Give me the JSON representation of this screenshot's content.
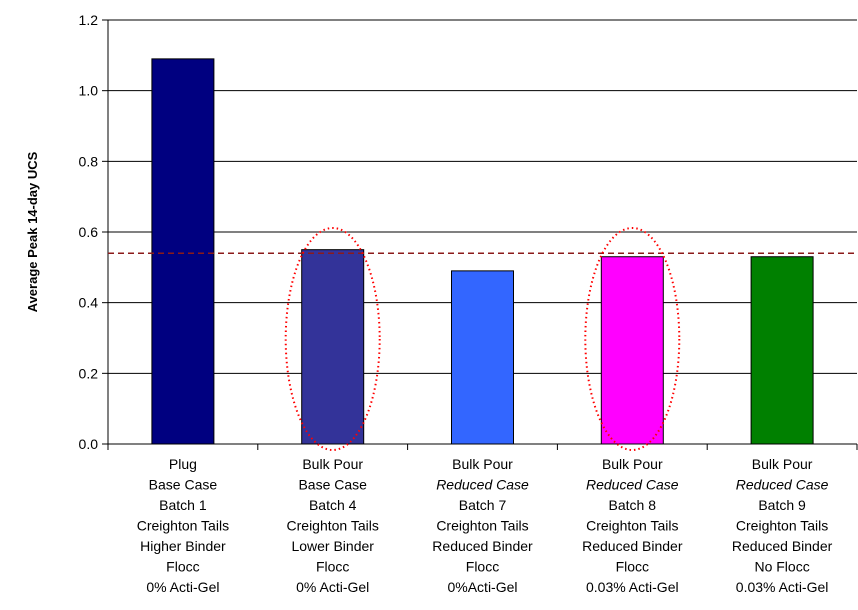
{
  "chart_data": {
    "type": "bar",
    "ylabel": "Average Peak 14-day UCS",
    "xlabel": "",
    "title": "",
    "ylim": [
      0,
      1.2
    ],
    "yticks": [
      "0.0",
      "0.2",
      "0.4",
      "0.6",
      "0.8",
      "1.0",
      "1.2"
    ],
    "grid": true,
    "categories": [
      [
        "Plug",
        "Base Case",
        "Batch 1",
        "Creighton Tails",
        "Higher Binder",
        "Flocc",
        "0% Acti-Gel"
      ],
      [
        "Bulk Pour",
        "Base Case",
        "Batch 4",
        "Creighton Tails",
        "Lower Binder",
        "Flocc",
        "0% Acti-Gel"
      ],
      [
        "Bulk Pour",
        "Reduced Case",
        "Batch 7",
        "Creighton Tails",
        "Reduced Binder",
        "Flocc",
        "0%Acti-Gel"
      ],
      [
        "Bulk Pour",
        "Reduced Case",
        "Batch 8",
        "Creighton Tails",
        "Reduced Binder",
        "Flocc",
        "0.03% Acti-Gel"
      ],
      [
        "Bulk Pour",
        "Reduced Case",
        "Batch 9",
        "Creighton Tails",
        "Reduced Binder",
        "No Flocc",
        "0.03% Acti-Gel"
      ]
    ],
    "italic_line_index": 1,
    "italic_categories": [
      2,
      3,
      4
    ],
    "values": [
      1.09,
      0.55,
      0.49,
      0.53,
      0.53
    ],
    "colors": [
      "#000080",
      "#333399",
      "#3366ff",
      "#ff00ff",
      "#008000"
    ],
    "reference_line": {
      "value": 0.54,
      "color": "#8b1a1a",
      "style": "dashed"
    },
    "highlighted_categories": [
      1,
      3
    ],
    "highlight_color": "#ff0000"
  }
}
